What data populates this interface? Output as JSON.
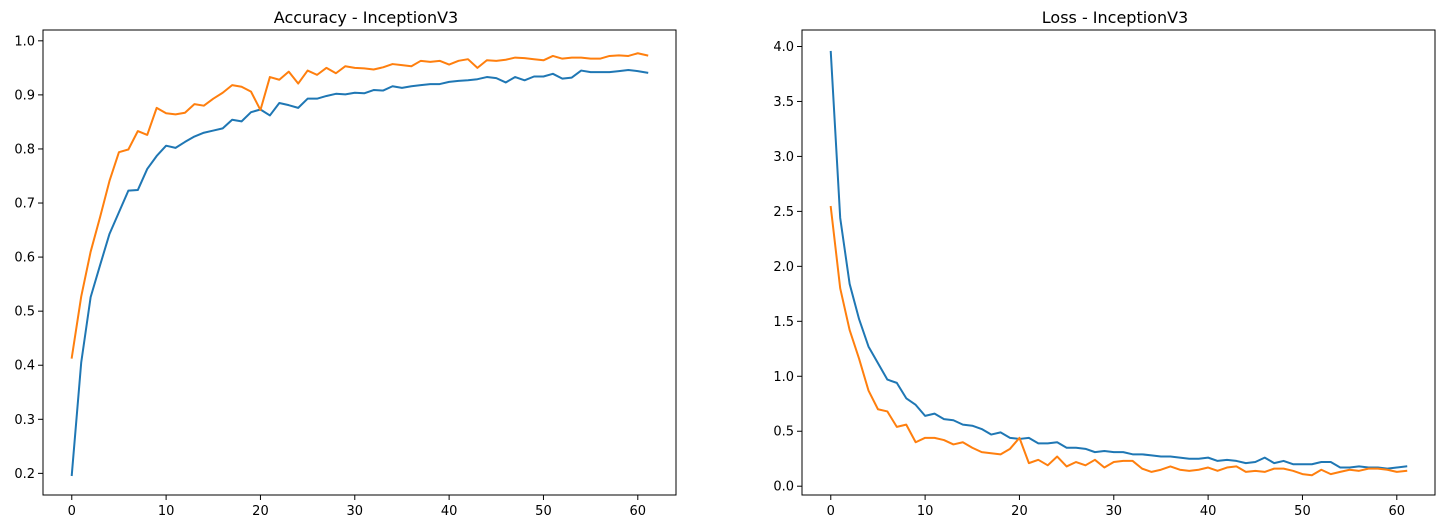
{
  "colors": {
    "series_1": "#1f77b4",
    "series_2": "#ff7f0e"
  },
  "chart_data": [
    {
      "type": "line",
      "title": "Accuracy - InceptionV3",
      "xlabel": "",
      "ylabel": "",
      "xlim": [
        -3.05,
        64.05
      ],
      "ylim": [
        0.16,
        1.02
      ],
      "xticks": [
        0,
        10,
        20,
        30,
        40,
        50,
        60
      ],
      "xtick_labels": [
        "0",
        "10",
        "20",
        "30",
        "40",
        "50",
        "60"
      ],
      "yticks": [
        0.2,
        0.3,
        0.4,
        0.5,
        0.6,
        0.7,
        0.8,
        0.9,
        1.0
      ],
      "ytick_labels": [
        "0.2",
        "0.3",
        "0.4",
        "0.5",
        "0.6",
        "0.7",
        "0.8",
        "0.9",
        "1.0"
      ],
      "grid": false,
      "x": [
        0,
        1,
        2,
        3,
        4,
        5,
        6,
        7,
        8,
        9,
        10,
        11,
        12,
        13,
        14,
        15,
        16,
        17,
        18,
        19,
        20,
        21,
        22,
        23,
        24,
        25,
        26,
        27,
        28,
        29,
        30,
        31,
        32,
        33,
        34,
        35,
        36,
        37,
        38,
        39,
        40,
        41,
        42,
        43,
        44,
        45,
        46,
        47,
        48,
        49,
        50,
        51,
        52,
        53,
        54,
        55,
        56,
        57,
        58,
        59,
        60,
        61
      ],
      "series": [
        {
          "color": "#1f77b4",
          "values": [
            0.197,
            0.405,
            0.526,
            0.585,
            0.643,
            0.683,
            0.723,
            0.724,
            0.763,
            0.787,
            0.806,
            0.802,
            0.813,
            0.823,
            0.83,
            0.834,
            0.838,
            0.854,
            0.851,
            0.868,
            0.873,
            0.862,
            0.885,
            0.881,
            0.876,
            0.893,
            0.893,
            0.898,
            0.902,
            0.901,
            0.904,
            0.903,
            0.909,
            0.908,
            0.916,
            0.913,
            0.916,
            0.918,
            0.92,
            0.92,
            0.924,
            0.926,
            0.927,
            0.929,
            0.933,
            0.931,
            0.923,
            0.933,
            0.927,
            0.934,
            0.934,
            0.939,
            0.93,
            0.932,
            0.945,
            0.942,
            0.942,
            0.942,
            0.944,
            0.946,
            0.944,
            0.941
          ]
        },
        {
          "color": "#ff7f0e",
          "values": [
            0.414,
            0.527,
            0.61,
            0.674,
            0.741,
            0.794,
            0.799,
            0.833,
            0.826,
            0.876,
            0.866,
            0.864,
            0.867,
            0.883,
            0.88,
            0.893,
            0.904,
            0.918,
            0.915,
            0.906,
            0.872,
            0.933,
            0.928,
            0.943,
            0.921,
            0.945,
            0.937,
            0.95,
            0.94,
            0.953,
            0.95,
            0.949,
            0.947,
            0.951,
            0.957,
            0.955,
            0.953,
            0.963,
            0.961,
            0.963,
            0.956,
            0.963,
            0.966,
            0.95,
            0.964,
            0.963,
            0.965,
            0.969,
            0.968,
            0.966,
            0.964,
            0.972,
            0.967,
            0.969,
            0.969,
            0.967,
            0.967,
            0.972,
            0.973,
            0.972,
            0.977,
            0.973
          ]
        }
      ]
    },
    {
      "type": "line",
      "title": "Loss - InceptionV3",
      "xlabel": "",
      "ylabel": "",
      "xlim": [
        -3.05,
        64.05
      ],
      "ylim": [
        -0.08,
        4.15
      ],
      "xticks": [
        0,
        10,
        20,
        30,
        40,
        50,
        60
      ],
      "xtick_labels": [
        "0",
        "10",
        "20",
        "30",
        "40",
        "50",
        "60"
      ],
      "yticks": [
        0.0,
        0.5,
        1.0,
        1.5,
        2.0,
        2.5,
        3.0,
        3.5,
        4.0
      ],
      "ytick_labels": [
        "0.0",
        "0.5",
        "1.0",
        "1.5",
        "2.0",
        "2.5",
        "3.0",
        "3.5",
        "4.0"
      ],
      "grid": false,
      "x": [
        0,
        1,
        2,
        3,
        4,
        5,
        6,
        7,
        8,
        9,
        10,
        11,
        12,
        13,
        14,
        15,
        16,
        17,
        18,
        19,
        20,
        21,
        22,
        23,
        24,
        25,
        26,
        27,
        28,
        29,
        30,
        31,
        32,
        33,
        34,
        35,
        36,
        37,
        38,
        39,
        40,
        41,
        42,
        43,
        44,
        45,
        46,
        47,
        48,
        49,
        50,
        51,
        52,
        53,
        54,
        55,
        56,
        57,
        58,
        59,
        60,
        61
      ],
      "series": [
        {
          "color": "#1f77b4",
          "values": [
            3.95,
            2.44,
            1.84,
            1.52,
            1.27,
            1.12,
            0.97,
            0.94,
            0.8,
            0.74,
            0.64,
            0.66,
            0.61,
            0.6,
            0.56,
            0.55,
            0.52,
            0.47,
            0.49,
            0.44,
            0.43,
            0.44,
            0.39,
            0.39,
            0.4,
            0.35,
            0.35,
            0.34,
            0.31,
            0.32,
            0.31,
            0.31,
            0.29,
            0.29,
            0.28,
            0.27,
            0.27,
            0.26,
            0.25,
            0.25,
            0.26,
            0.23,
            0.24,
            0.23,
            0.21,
            0.22,
            0.26,
            0.21,
            0.23,
            0.2,
            0.2,
            0.2,
            0.22,
            0.22,
            0.17,
            0.17,
            0.18,
            0.17,
            0.17,
            0.16,
            0.17,
            0.18
          ]
        },
        {
          "color": "#ff7f0e",
          "values": [
            2.54,
            1.8,
            1.42,
            1.16,
            0.87,
            0.7,
            0.68,
            0.54,
            0.56,
            0.4,
            0.44,
            0.44,
            0.42,
            0.38,
            0.4,
            0.35,
            0.31,
            0.3,
            0.29,
            0.34,
            0.44,
            0.21,
            0.24,
            0.19,
            0.27,
            0.18,
            0.22,
            0.19,
            0.24,
            0.17,
            0.22,
            0.23,
            0.23,
            0.16,
            0.13,
            0.15,
            0.18,
            0.15,
            0.14,
            0.15,
            0.17,
            0.14,
            0.17,
            0.18,
            0.13,
            0.14,
            0.13,
            0.16,
            0.16,
            0.14,
            0.11,
            0.1,
            0.15,
            0.11,
            0.13,
            0.15,
            0.14,
            0.16,
            0.16,
            0.15,
            0.13,
            0.14
          ]
        }
      ]
    }
  ]
}
